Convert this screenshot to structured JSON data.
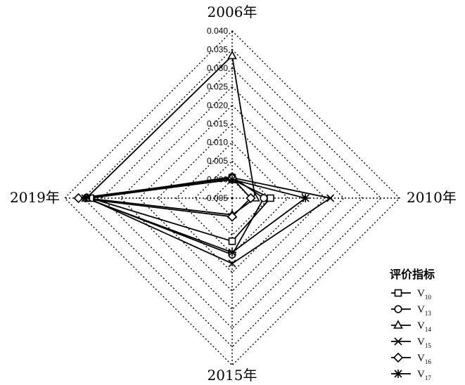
{
  "chart_data": {
    "type": "radar",
    "axes": [
      "2006年",
      "2010年",
      "2015年",
      "2019年"
    ],
    "tick_labels": [
      "-0.005",
      "0.000",
      "0.005",
      "0.010",
      "0.015",
      "0.020",
      "0.025",
      "0.030",
      "0.035",
      "0.040"
    ],
    "r_range": [
      -0.005,
      0.04
    ],
    "grid": "dotted",
    "legend": {
      "title": "评价指标",
      "position": "bottom-right",
      "entries": [
        {
          "name": "V",
          "sub": "10",
          "marker": "square"
        },
        {
          "name": "V",
          "sub": "13",
          "marker": "circle"
        },
        {
          "name": "V",
          "sub": "14",
          "marker": "triangle"
        },
        {
          "name": "V",
          "sub": "15",
          "marker": "x"
        },
        {
          "name": "V",
          "sub": "16",
          "marker": "diamond"
        },
        {
          "name": "V",
          "sub": "17",
          "marker": "asterisk"
        }
      ]
    },
    "series": [
      {
        "name": "V10",
        "marker": "square",
        "values": [
          0.0,
          0.0053,
          0.0066,
          0.0331
        ]
      },
      {
        "name": "V13",
        "marker": "circle",
        "values": [
          0.0007,
          0.0035,
          0.0102,
          0.0342
        ]
      },
      {
        "name": "V14",
        "marker": "triangle",
        "values": [
          0.0333,
          0.0012,
          -0.0005,
          0.0342
        ]
      },
      {
        "name": "V15",
        "marker": "x",
        "values": [
          0.0005,
          0.0214,
          0.0126,
          0.0338
        ]
      },
      {
        "name": "V16",
        "marker": "diamond",
        "values": [
          0.0004,
          0.0,
          0.0,
          0.0363
        ]
      },
      {
        "name": "V17",
        "marker": "asterisk",
        "values": [
          0.0,
          0.0147,
          0.0096,
          0.0345
        ]
      }
    ]
  }
}
